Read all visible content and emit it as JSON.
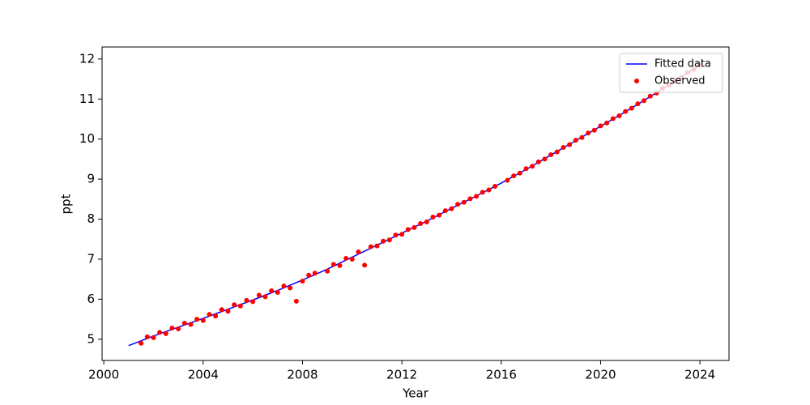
{
  "chart_data": {
    "type": "line",
    "xlabel": "Year",
    "ylabel": "ppt",
    "xlim": [
      1999.93,
      2025.17
    ],
    "ylim": [
      4.47,
      12.3
    ],
    "xticks": [
      2000,
      2004,
      2008,
      2012,
      2016,
      2020,
      2024
    ],
    "yticks": [
      5,
      6,
      7,
      8,
      9,
      10,
      11,
      12
    ],
    "grid": false,
    "legend": "upper right",
    "series": [
      {
        "name": "Fitted data",
        "color": "#0000ff",
        "mode": "line",
        "x": [
          2001,
          2002,
          2003,
          2004,
          2005,
          2006,
          2007,
          2008,
          2009,
          2010,
          2011,
          2012,
          2013,
          2014,
          2015,
          2016,
          2017,
          2018,
          2019,
          2020,
          2021,
          2022,
          2023,
          2024
        ],
        "values": [
          4.84,
          5.08,
          5.3,
          5.52,
          5.75,
          5.98,
          6.22,
          6.48,
          6.75,
          7.05,
          7.35,
          7.65,
          7.95,
          8.27,
          8.58,
          8.9,
          9.24,
          9.6,
          9.96,
          10.32,
          10.68,
          11.06,
          11.45,
          11.85
        ]
      },
      {
        "name": "Observed",
        "color": "#ff0000",
        "mode": "scatter",
        "x": [
          2001.5,
          2001.75,
          2002,
          2002.25,
          2002.5,
          2002.75,
          2003,
          2003.25,
          2003.5,
          2003.75,
          2004,
          2004.25,
          2004.5,
          2004.75,
          2005,
          2005.25,
          2005.5,
          2005.75,
          2006,
          2006.25,
          2006.5,
          2006.75,
          2007,
          2007.25,
          2007.5,
          2007.75,
          2008,
          2008.25,
          2008.5,
          2009,
          2009.25,
          2009.5,
          2009.75,
          2010,
          2010.25,
          2010.5,
          2010.75,
          2011,
          2011.25,
          2011.5,
          2011.75,
          2012,
          2012.25,
          2012.5,
          2012.75,
          2013,
          2013.25,
          2013.5,
          2013.75,
          2014,
          2014.25,
          2014.5,
          2014.75,
          2015,
          2015.25,
          2015.5,
          2015.75,
          2016.25,
          2016.5,
          2016.75,
          2017,
          2017.25,
          2017.5,
          2017.75,
          2018,
          2018.25,
          2018.5,
          2018.75,
          2019,
          2019.25,
          2019.5,
          2019.75,
          2020,
          2020.25,
          2020.5,
          2020.75,
          2021,
          2021.25,
          2021.5,
          2021.75,
          2022,
          2022.25,
          2022.5,
          2022.75,
          2023,
          2023.25,
          2023.5,
          2023.75,
          2024
        ],
        "values": [
          4.9,
          5.06,
          5.04,
          5.17,
          5.14,
          5.28,
          5.26,
          5.4,
          5.37,
          5.5,
          5.47,
          5.62,
          5.58,
          5.74,
          5.7,
          5.86,
          5.83,
          5.97,
          5.94,
          6.1,
          6.06,
          6.21,
          6.17,
          6.33,
          6.28,
          5.95,
          6.45,
          6.6,
          6.65,
          6.7,
          6.87,
          6.84,
          7.02,
          7.0,
          7.18,
          6.85,
          7.31,
          7.33,
          7.45,
          7.48,
          7.6,
          7.62,
          7.74,
          7.79,
          7.89,
          7.93,
          8.05,
          8.1,
          8.21,
          8.26,
          8.37,
          8.42,
          8.51,
          8.57,
          8.67,
          8.73,
          8.82,
          8.97,
          9.08,
          9.15,
          9.26,
          9.32,
          9.43,
          9.5,
          9.61,
          9.68,
          9.79,
          9.86,
          9.97,
          10.04,
          10.15,
          10.22,
          10.33,
          10.4,
          10.51,
          10.58,
          10.69,
          10.77,
          10.88,
          10.96,
          11.07,
          11.15,
          11.27,
          11.35,
          11.46,
          11.54,
          11.66,
          11.74,
          11.85
        ]
      }
    ]
  }
}
